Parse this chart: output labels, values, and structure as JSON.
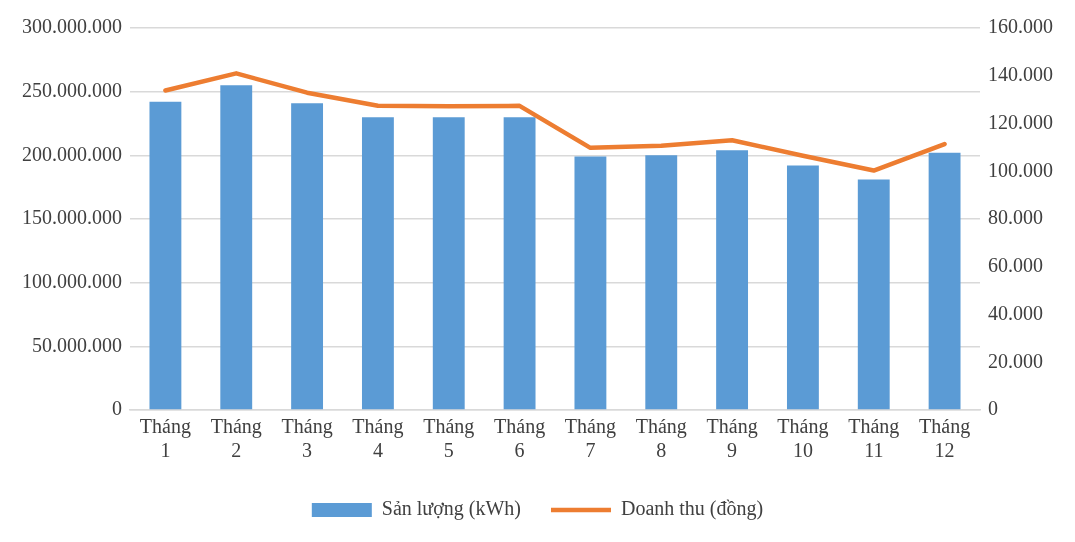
{
  "chart_data": {
    "type": "bar",
    "categories": [
      "Tháng 1",
      "Tháng 2",
      "Tháng 3",
      "Tháng 4",
      "Tháng 5",
      "Tháng 6",
      "Tháng 7",
      "Tháng 8",
      "Tháng 9",
      "Tháng 10",
      "Tháng 11",
      "Tháng 12"
    ],
    "series": [
      {
        "name": "Sản lượng (kWh)",
        "color": "#5b9bd5",
        "values": [
          242000000,
          255000000,
          241000000,
          230000000,
          230000000,
          230000000,
          199000000,
          200000000,
          204000000,
          192000000,
          181000000,
          202000000
        ]
      },
      {
        "name": "Doanh thu (đồng)",
        "type": "line",
        "axis": "y2",
        "color": "#ed7d31",
        "values": [
          133800,
          141000,
          132900,
          127400,
          127200,
          127400,
          109800,
          110700,
          113000,
          106500,
          100300,
          111400
        ]
      }
    ],
    "ylim": [
      0,
      300000000
    ],
    "yticks": [
      0,
      {
        "value": 50000000,
        "label": "50.000.000"
      },
      {
        "value": 100000000,
        "label": "100.000.000"
      },
      {
        "value": 150000000,
        "label": "150.000.000"
      },
      {
        "value": 200000000,
        "label": "200.000.000"
      },
      {
        "value": 250000000,
        "label": "250.000.000"
      },
      {
        "value": 300000000,
        "label": "300.000.000"
      }
    ],
    "y2lim": [
      0,
      160000
    ],
    "y2ticks": [
      0,
      {
        "value": 20000,
        "label": "20.000"
      },
      {
        "value": 40000,
        "label": "40.000"
      },
      {
        "value": 60000,
        "label": "60.000"
      },
      {
        "value": 80000,
        "label": "80.000"
      },
      {
        "value": 100000,
        "label": "100.000"
      },
      {
        "value": 120000,
        "label": "120.000"
      },
      {
        "value": 140000,
        "label": "140.000"
      },
      {
        "value": 160000,
        "label": "160.000"
      }
    ],
    "grid": "y",
    "legend": "bottom",
    "marker": "none",
    "line_style": "solid"
  }
}
